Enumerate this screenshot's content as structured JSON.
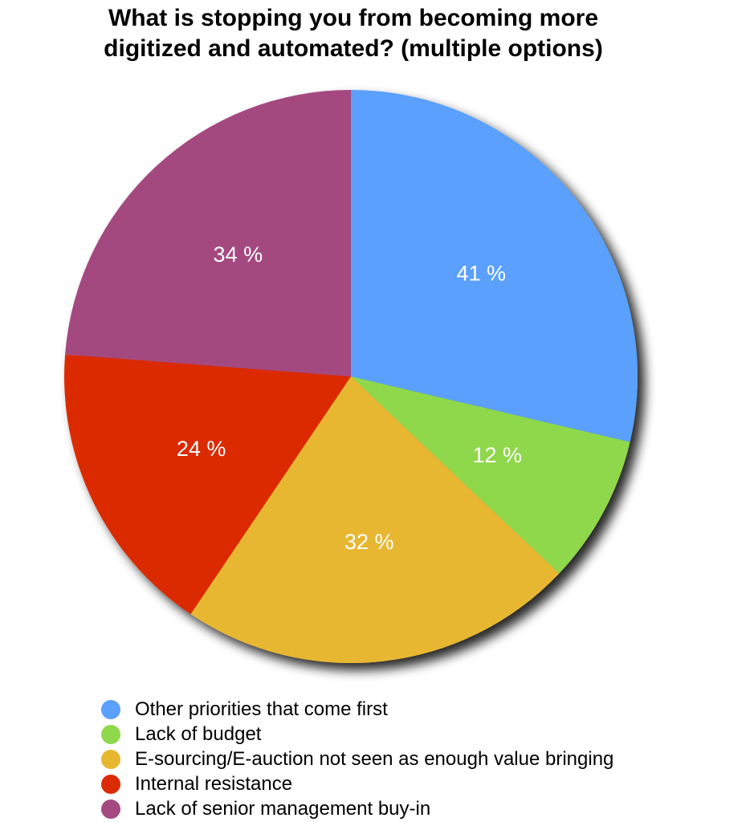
{
  "chart_data": {
    "type": "pie",
    "title": "What is stopping you from becoming more digitized and automated? (multiple options)",
    "title_lines": [
      "What is stopping you from becoming more",
      "digitized and automated? (multiple options)"
    ],
    "slices": [
      {
        "name": "Other priorities that come first",
        "value": 41,
        "label": "41 %",
        "color": "#5aa0fc"
      },
      {
        "name": "Lack of budget",
        "value": 12,
        "label": "12 %",
        "color": "#8fd84c"
      },
      {
        "name": "E-sourcing/E-auction not seen as enough value bringing",
        "value": 32,
        "label": "32 %",
        "color": "#e8b730"
      },
      {
        "name": "Internal resistance",
        "value": 24,
        "label": "24 %",
        "color": "#dc2a05"
      },
      {
        "name": "Lack of senior management buy-in",
        "value": 34,
        "label": "34 %",
        "color": "#a44a80"
      }
    ],
    "start_angle": "top",
    "direction": "clockwise",
    "legend_position": "bottom-left"
  }
}
